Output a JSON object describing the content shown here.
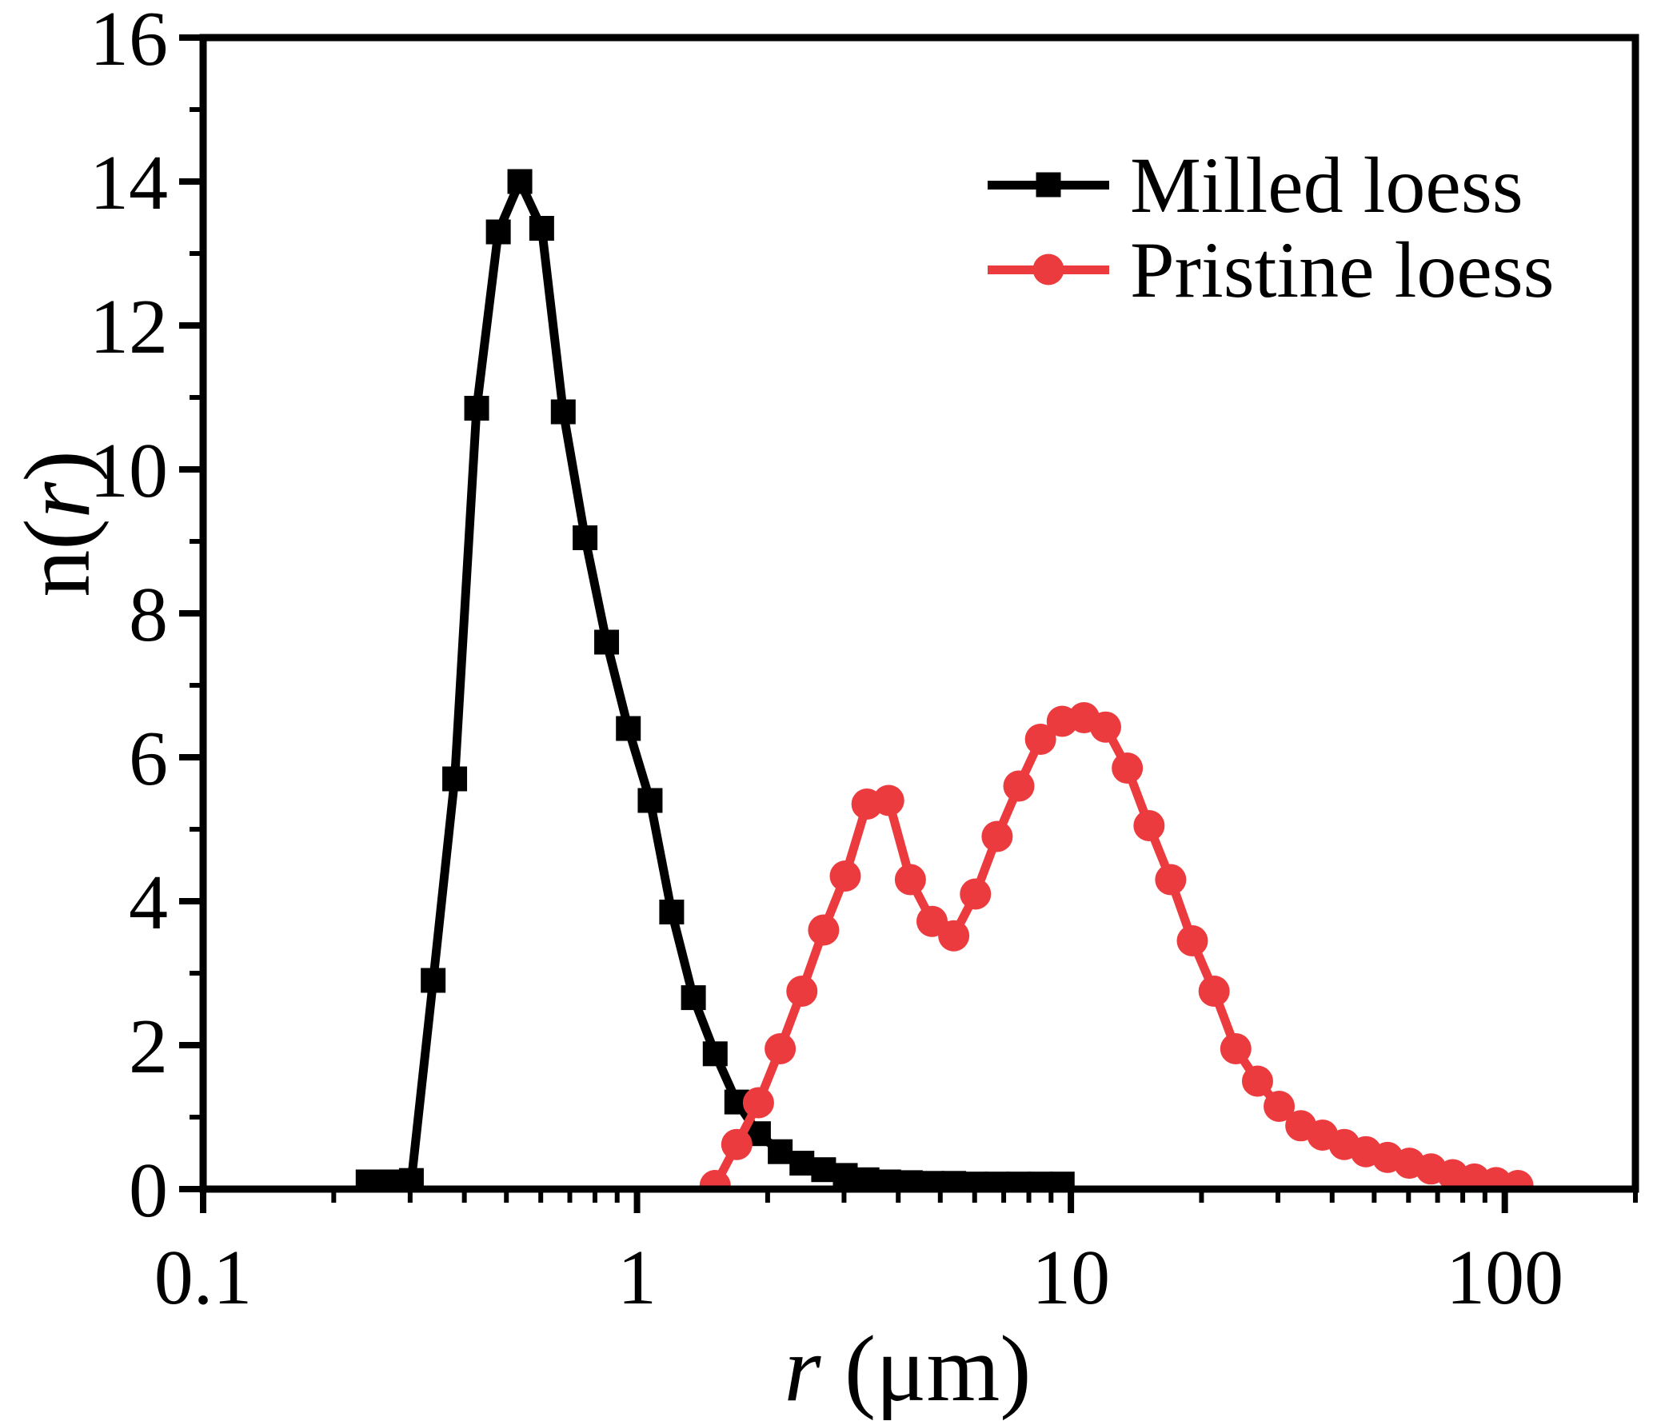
{
  "chart_data": {
    "type": "line",
    "title": "",
    "background": "#ffffff",
    "axes": {
      "x": {
        "scale": "log",
        "range": [
          0.1,
          200
        ],
        "label_italic": "r",
        "label_rest": " (μm)",
        "major_ticks": [
          0.1,
          1,
          10,
          100
        ],
        "major_tick_labels": [
          "0.1",
          "1",
          "10",
          "100"
        ],
        "minor_ticks": [
          0.2,
          0.3,
          0.4,
          0.5,
          0.6,
          0.7,
          0.8,
          0.9,
          2,
          3,
          4,
          5,
          6,
          7,
          8,
          9,
          20,
          30,
          40,
          50,
          60,
          70,
          80,
          90,
          200
        ]
      },
      "y": {
        "scale": "linear",
        "range": [
          0,
          16
        ],
        "label_prefix": "n(",
        "label_italic": "r",
        "label_suffix": ")",
        "major_ticks": [
          0,
          2,
          4,
          6,
          8,
          10,
          12,
          14,
          16
        ],
        "major_tick_labels": [
          "0",
          "2",
          "4",
          "6",
          "8",
          "10",
          "12",
          "14",
          "16"
        ],
        "minor_ticks": [
          1,
          3,
          5,
          7,
          9,
          11,
          13,
          15
        ]
      },
      "axis_color": "#000000"
    },
    "grid": false,
    "legend": {
      "position": "top-right",
      "entries": [
        {
          "label": "Milled loess",
          "color": "#000000",
          "marker": "square"
        },
        {
          "label": "Pristine loess",
          "color": "#EC3B3E",
          "marker": "circle"
        }
      ]
    },
    "series": [
      {
        "name": "Milled loess",
        "color": "#000000",
        "marker": "square",
        "x": [
          0.24,
          0.269,
          0.302,
          0.339,
          0.38,
          0.427,
          0.479,
          0.537,
          0.603,
          0.676,
          0.759,
          0.851,
          0.955,
          1.072,
          1.202,
          1.349,
          1.514,
          1.698,
          1.905,
          2.138,
          2.399,
          2.692,
          3.02,
          3.389,
          3.802,
          4.266,
          4.786,
          5.37,
          6.026,
          6.761,
          7.586,
          8.511,
          9.55
        ],
        "y": [
          0.1,
          0.1,
          0.12,
          2.9,
          5.7,
          10.85,
          13.3,
          14.0,
          13.35,
          10.8,
          9.05,
          7.6,
          6.4,
          5.4,
          3.85,
          2.66,
          1.88,
          1.21,
          0.77,
          0.52,
          0.36,
          0.27,
          0.19,
          0.13,
          0.1,
          0.09,
          0.08,
          0.08,
          0.07,
          0.07,
          0.07,
          0.07,
          0.07
        ]
      },
      {
        "name": "Pristine loess",
        "color": "#EC3B3E",
        "marker": "circle",
        "x": [
          1.514,
          1.698,
          1.905,
          2.138,
          2.399,
          2.692,
          3.02,
          3.389,
          3.802,
          4.266,
          4.786,
          5.37,
          6.026,
          6.761,
          7.586,
          8.511,
          9.55,
          10.72,
          12.02,
          13.49,
          15.14,
          16.98,
          19.05,
          21.38,
          23.99,
          26.92,
          30.2,
          33.88,
          38.02,
          42.66,
          47.86,
          53.7,
          60.26,
          67.61,
          75.86,
          85.11,
          95.5,
          107.2
        ],
        "y": [
          0.05,
          0.62,
          1.2,
          1.95,
          2.75,
          3.6,
          4.35,
          5.35,
          5.4,
          4.3,
          3.72,
          3.52,
          4.1,
          4.9,
          5.6,
          6.25,
          6.5,
          6.55,
          6.42,
          5.85,
          5.05,
          4.3,
          3.45,
          2.75,
          1.95,
          1.5,
          1.15,
          0.88,
          0.75,
          0.62,
          0.52,
          0.44,
          0.36,
          0.28,
          0.2,
          0.14,
          0.09,
          0.05
        ]
      }
    ]
  }
}
